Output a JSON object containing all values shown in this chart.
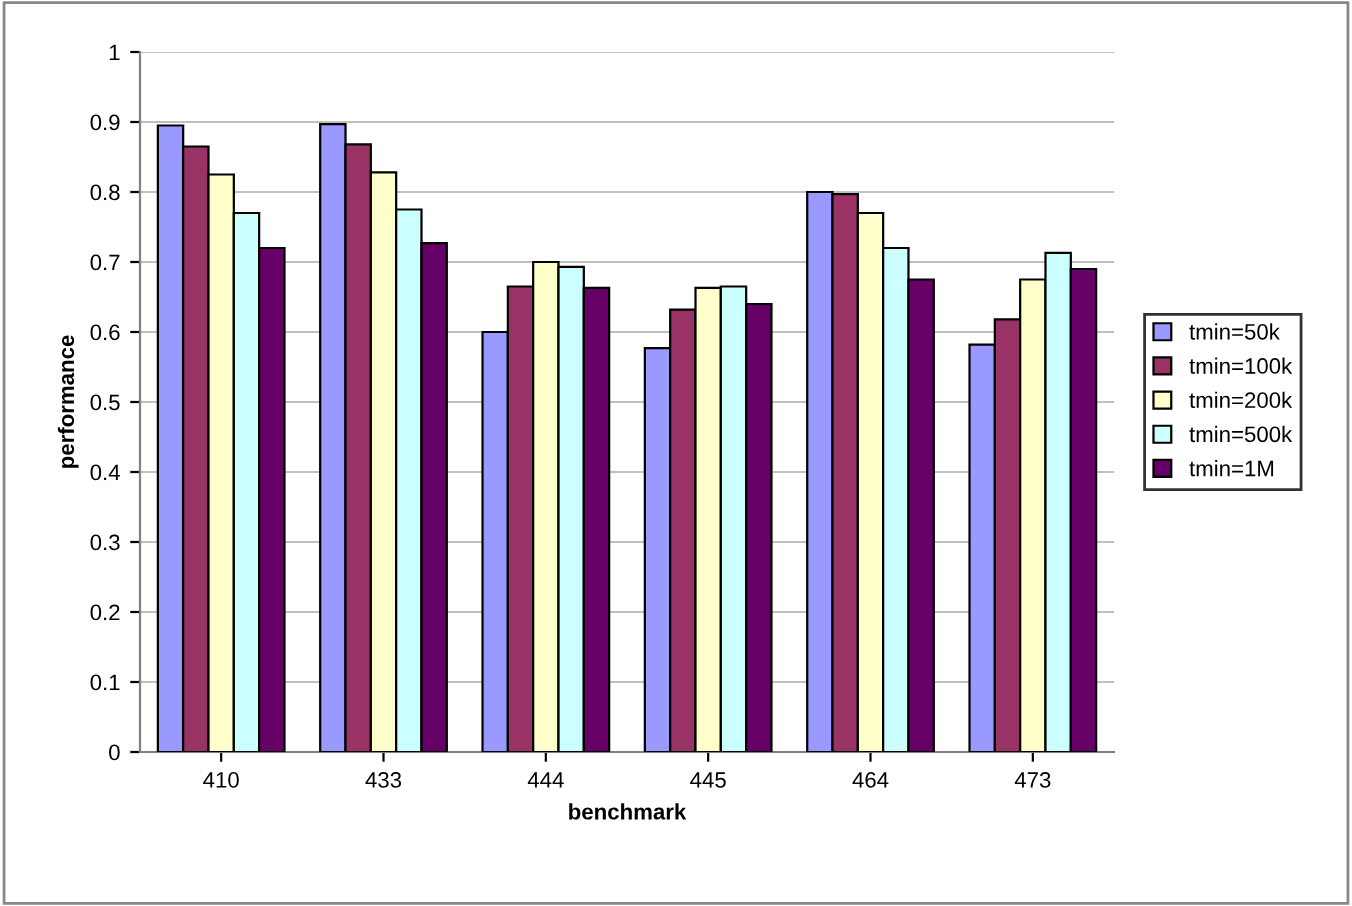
{
  "chart_data": {
    "type": "bar",
    "xlabel": "benchmark",
    "ylabel": "performance",
    "categories": [
      "410",
      "433",
      "444",
      "445",
      "464",
      "473"
    ],
    "series": [
      {
        "name": "tmin=50k",
        "color": "#9999ff",
        "values": [
          0.895,
          0.897,
          0.6,
          0.577,
          0.8,
          0.582
        ]
      },
      {
        "name": "tmin=100k",
        "color": "#993366",
        "values": [
          0.865,
          0.868,
          0.665,
          0.632,
          0.797,
          0.618
        ]
      },
      {
        "name": "tmin=200k",
        "color": "#ffffcc",
        "values": [
          0.825,
          0.828,
          0.7,
          0.663,
          0.77,
          0.675
        ]
      },
      {
        "name": "tmin=500k",
        "color": "#ccffff",
        "values": [
          0.77,
          0.775,
          0.693,
          0.665,
          0.72,
          0.713
        ]
      },
      {
        "name": "tmin=1M",
        "color": "#660066",
        "values": [
          0.72,
          0.727,
          0.663,
          0.64,
          0.675,
          0.69
        ]
      }
    ],
    "ylim": [
      0,
      1
    ],
    "yticks": [
      0,
      0.1,
      0.2,
      0.3,
      0.4,
      0.5,
      0.6,
      0.7,
      0.8,
      0.9,
      1
    ],
    "grid": "y",
    "legend": "right"
  }
}
